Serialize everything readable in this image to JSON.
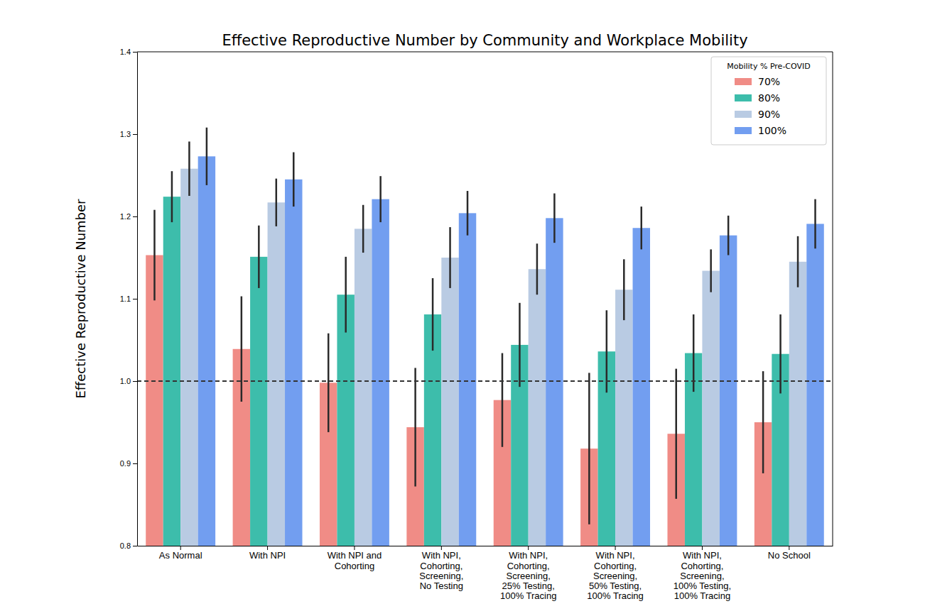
{
  "chart_data": {
    "type": "bar",
    "title": "Effective Reproductive Number by Community and Workplace Mobility",
    "y_label": "Effective Reproductive Number",
    "categories": [
      "As Normal",
      "With NPI",
      "With NPI and\nCohorting",
      "With NPI,\nCohorting,\nScreening,\nNo Testing",
      "With NPI,\nCohorting,\nScreening,\n25% Testing,\n100% Tracing",
      "With NPI,\nCohorting,\nScreening,\n50% Testing,\n100% Tracing",
      "With NPI,\nCohorting,\nScreening,\n100% Testing,\n100% Tracing",
      "No School"
    ],
    "series": [
      {
        "name": "70%",
        "color": "#f08c86",
        "values": [
          1.153,
          1.039,
          0.998,
          0.944,
          0.977,
          0.918,
          0.936,
          0.95
        ],
        "errors": [
          0.055,
          0.064,
          0.06,
          0.072,
          0.057,
          0.092,
          0.079,
          0.062
        ]
      },
      {
        "name": "80%",
        "color": "#3dbdab",
        "values": [
          1.224,
          1.151,
          1.105,
          1.081,
          1.044,
          1.036,
          1.034,
          1.033
        ],
        "errors": [
          0.031,
          0.038,
          0.046,
          0.044,
          0.051,
          0.05,
          0.047,
          0.048
        ]
      },
      {
        "name": "90%",
        "color": "#b9cbe3",
        "values": [
          1.258,
          1.217,
          1.185,
          1.15,
          1.136,
          1.111,
          1.134,
          1.145
        ],
        "errors": [
          0.033,
          0.029,
          0.029,
          0.037,
          0.031,
          0.037,
          0.026,
          0.031
        ]
      },
      {
        "name": "100%",
        "color": "#729ef0",
        "values": [
          1.273,
          1.245,
          1.221,
          1.204,
          1.198,
          1.186,
          1.177,
          1.191
        ],
        "errors": [
          0.035,
          0.033,
          0.028,
          0.027,
          0.03,
          0.026,
          0.024,
          0.03
        ]
      }
    ],
    "legend_title": "Mobility % Pre-COVID",
    "legend": "upper right",
    "reference_line": {
      "value": 1,
      "line_style": "dashed"
    },
    "ylim": [
      0.8,
      1.4
    ],
    "yticks": [
      0.8,
      0.9,
      {
        "value": 1,
        "label": "1.0"
      },
      1.1,
      1.2,
      1.3,
      1.4
    ],
    "grid": false
  }
}
